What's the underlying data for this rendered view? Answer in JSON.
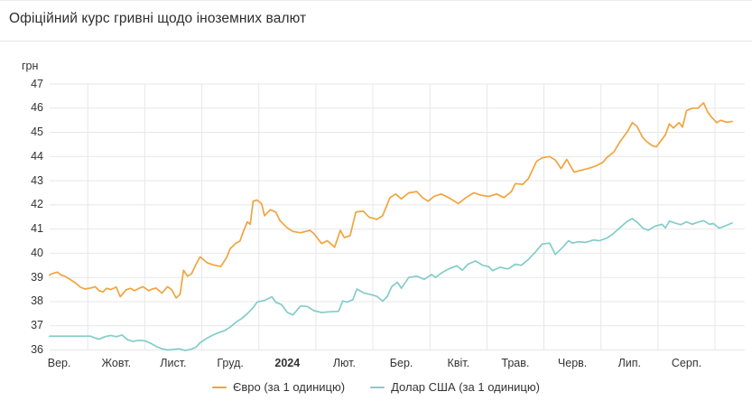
{
  "header": {
    "title": "Офіційний курс гривні щодо іноземних валют"
  },
  "colors": {
    "euro_line": "#f1a43d",
    "usd_line": "#82cdca",
    "grid": "#e7e7e7",
    "text": "#333333"
  },
  "chart_data": {
    "type": "line",
    "title": "Офіційний курс гривні щодо іноземних валют",
    "ylabel": "грн",
    "ylim": [
      36,
      47
    ],
    "y_ticks": [
      47,
      46,
      45,
      44,
      43,
      42,
      41,
      40,
      39,
      38,
      37,
      36
    ],
    "x_tick_labels": [
      "Вер.",
      "Жовт.",
      "Лист.",
      "Груд.",
      "2024",
      "Лют.",
      "Бер.",
      "Квіт.",
      "Трав.",
      "Черв.",
      "Лип.",
      "Серп."
    ],
    "x_unit": "months-since-2023-09-01",
    "xlim": [
      0.32,
      12.5
    ],
    "grid": true,
    "legend_position": "bottom",
    "series": [
      {
        "name": "Євро (за 1 одиницю)",
        "color": "#f1a43d",
        "points": [
          [
            0.33,
            39.1
          ],
          [
            0.4,
            39.18
          ],
          [
            0.47,
            39.22
          ],
          [
            0.53,
            39.1
          ],
          [
            0.6,
            39.05
          ],
          [
            0.67,
            38.95
          ],
          [
            0.78,
            38.78
          ],
          [
            0.87,
            38.6
          ],
          [
            0.95,
            38.52
          ],
          [
            1.07,
            38.57
          ],
          [
            1.13,
            38.62
          ],
          [
            1.2,
            38.45
          ],
          [
            1.27,
            38.4
          ],
          [
            1.33,
            38.55
          ],
          [
            1.4,
            38.5
          ],
          [
            1.5,
            38.6
          ],
          [
            1.57,
            38.2
          ],
          [
            1.67,
            38.48
          ],
          [
            1.75,
            38.55
          ],
          [
            1.82,
            38.45
          ],
          [
            1.9,
            38.55
          ],
          [
            1.97,
            38.62
          ],
          [
            2.07,
            38.45
          ],
          [
            2.13,
            38.52
          ],
          [
            2.2,
            38.56
          ],
          [
            2.3,
            38.35
          ],
          [
            2.4,
            38.62
          ],
          [
            2.47,
            38.5
          ],
          [
            2.55,
            38.15
          ],
          [
            2.62,
            38.3
          ],
          [
            2.68,
            39.3
          ],
          [
            2.75,
            39.05
          ],
          [
            2.82,
            39.15
          ],
          [
            2.9,
            39.55
          ],
          [
            2.97,
            39.85
          ],
          [
            3.1,
            39.6
          ],
          [
            3.2,
            39.52
          ],
          [
            3.33,
            39.45
          ],
          [
            3.43,
            39.8
          ],
          [
            3.5,
            40.2
          ],
          [
            3.6,
            40.42
          ],
          [
            3.67,
            40.5
          ],
          [
            3.73,
            40.9
          ],
          [
            3.8,
            41.3
          ],
          [
            3.85,
            41.2
          ],
          [
            3.9,
            42.15
          ],
          [
            3.97,
            42.2
          ],
          [
            4.05,
            42.05
          ],
          [
            4.1,
            41.55
          ],
          [
            4.2,
            41.8
          ],
          [
            4.3,
            41.7
          ],
          [
            4.37,
            41.35
          ],
          [
            4.5,
            41.05
          ],
          [
            4.6,
            40.9
          ],
          [
            4.73,
            40.85
          ],
          [
            4.9,
            40.95
          ],
          [
            4.97,
            40.8
          ],
          [
            5.1,
            40.4
          ],
          [
            5.2,
            40.52
          ],
          [
            5.33,
            40.25
          ],
          [
            5.43,
            40.95
          ],
          [
            5.5,
            40.65
          ],
          [
            5.6,
            40.72
          ],
          [
            5.7,
            41.7
          ],
          [
            5.83,
            41.75
          ],
          [
            5.93,
            41.5
          ],
          [
            6.07,
            41.4
          ],
          [
            6.17,
            41.55
          ],
          [
            6.3,
            42.3
          ],
          [
            6.4,
            42.45
          ],
          [
            6.5,
            42.25
          ],
          [
            6.63,
            42.5
          ],
          [
            6.77,
            42.55
          ],
          [
            6.87,
            42.3
          ],
          [
            6.97,
            42.15
          ],
          [
            7.07,
            42.35
          ],
          [
            7.2,
            42.45
          ],
          [
            7.33,
            42.3
          ],
          [
            7.5,
            42.05
          ],
          [
            7.63,
            42.3
          ],
          [
            7.77,
            42.5
          ],
          [
            7.9,
            42.4
          ],
          [
            8.03,
            42.35
          ],
          [
            8.17,
            42.45
          ],
          [
            8.3,
            42.3
          ],
          [
            8.43,
            42.55
          ],
          [
            8.5,
            42.88
          ],
          [
            8.63,
            42.85
          ],
          [
            8.73,
            43.1
          ],
          [
            8.87,
            43.8
          ],
          [
            8.97,
            43.95
          ],
          [
            9.1,
            44.0
          ],
          [
            9.2,
            43.85
          ],
          [
            9.3,
            43.5
          ],
          [
            9.4,
            43.88
          ],
          [
            9.53,
            43.35
          ],
          [
            9.63,
            43.42
          ],
          [
            9.77,
            43.5
          ],
          [
            9.9,
            43.6
          ],
          [
            10.03,
            43.75
          ],
          [
            10.1,
            43.95
          ],
          [
            10.23,
            44.2
          ],
          [
            10.33,
            44.6
          ],
          [
            10.47,
            45.05
          ],
          [
            10.55,
            45.4
          ],
          [
            10.63,
            45.25
          ],
          [
            10.73,
            44.8
          ],
          [
            10.8,
            44.62
          ],
          [
            10.9,
            44.45
          ],
          [
            10.97,
            44.4
          ],
          [
            11.13,
            44.9
          ],
          [
            11.2,
            45.35
          ],
          [
            11.27,
            45.18
          ],
          [
            11.37,
            45.4
          ],
          [
            11.43,
            45.22
          ],
          [
            11.5,
            45.9
          ],
          [
            11.6,
            46.0
          ],
          [
            11.7,
            46.0
          ],
          [
            11.8,
            46.22
          ],
          [
            11.87,
            45.85
          ],
          [
            11.93,
            45.65
          ],
          [
            12.03,
            45.4
          ],
          [
            12.1,
            45.5
          ],
          [
            12.2,
            45.42
          ],
          [
            12.3,
            45.45
          ]
        ]
      },
      {
        "name": "Долар США (за 1 одиницю)",
        "color": "#82cdca",
        "points": [
          [
            0.33,
            36.57
          ],
          [
            0.6,
            36.57
          ],
          [
            0.9,
            36.57
          ],
          [
            1.05,
            36.57
          ],
          [
            1.12,
            36.5
          ],
          [
            1.2,
            36.45
          ],
          [
            1.3,
            36.55
          ],
          [
            1.4,
            36.6
          ],
          [
            1.5,
            36.55
          ],
          [
            1.6,
            36.62
          ],
          [
            1.7,
            36.42
          ],
          [
            1.8,
            36.36
          ],
          [
            1.9,
            36.4
          ],
          [
            2.0,
            36.38
          ],
          [
            2.1,
            36.28
          ],
          [
            2.2,
            36.15
          ],
          [
            2.3,
            36.05
          ],
          [
            2.4,
            36.0
          ],
          [
            2.5,
            36.02
          ],
          [
            2.6,
            36.05
          ],
          [
            2.7,
            35.98
          ],
          [
            2.8,
            36.02
          ],
          [
            2.9,
            36.12
          ],
          [
            2.97,
            36.3
          ],
          [
            3.1,
            36.5
          ],
          [
            3.2,
            36.62
          ],
          [
            3.3,
            36.72
          ],
          [
            3.4,
            36.8
          ],
          [
            3.5,
            36.95
          ],
          [
            3.6,
            37.15
          ],
          [
            3.7,
            37.3
          ],
          [
            3.8,
            37.5
          ],
          [
            3.9,
            37.75
          ],
          [
            3.97,
            37.98
          ],
          [
            4.1,
            38.05
          ],
          [
            4.23,
            38.2
          ],
          [
            4.3,
            37.97
          ],
          [
            4.4,
            37.88
          ],
          [
            4.5,
            37.55
          ],
          [
            4.6,
            37.45
          ],
          [
            4.73,
            37.82
          ],
          [
            4.85,
            37.8
          ],
          [
            4.97,
            37.62
          ],
          [
            5.1,
            37.55
          ],
          [
            5.25,
            37.58
          ],
          [
            5.4,
            37.6
          ],
          [
            5.47,
            38.03
          ],
          [
            5.55,
            37.98
          ],
          [
            5.65,
            38.08
          ],
          [
            5.72,
            38.52
          ],
          [
            5.85,
            38.35
          ],
          [
            5.95,
            38.3
          ],
          [
            6.07,
            38.22
          ],
          [
            6.17,
            38.02
          ],
          [
            6.25,
            38.2
          ],
          [
            6.33,
            38.62
          ],
          [
            6.43,
            38.8
          ],
          [
            6.5,
            38.55
          ],
          [
            6.63,
            39.0
          ],
          [
            6.77,
            39.05
          ],
          [
            6.9,
            38.92
          ],
          [
            7.03,
            39.12
          ],
          [
            7.1,
            39.0
          ],
          [
            7.2,
            39.18
          ],
          [
            7.33,
            39.35
          ],
          [
            7.47,
            39.48
          ],
          [
            7.57,
            39.3
          ],
          [
            7.67,
            39.55
          ],
          [
            7.8,
            39.68
          ],
          [
            7.93,
            39.5
          ],
          [
            8.03,
            39.45
          ],
          [
            8.1,
            39.28
          ],
          [
            8.23,
            39.42
          ],
          [
            8.37,
            39.35
          ],
          [
            8.5,
            39.55
          ],
          [
            8.6,
            39.5
          ],
          [
            8.73,
            39.75
          ],
          [
            8.87,
            40.1
          ],
          [
            8.97,
            40.38
          ],
          [
            9.1,
            40.42
          ],
          [
            9.2,
            39.95
          ],
          [
            9.33,
            40.25
          ],
          [
            9.43,
            40.52
          ],
          [
            9.5,
            40.42
          ],
          [
            9.6,
            40.48
          ],
          [
            9.73,
            40.45
          ],
          [
            9.87,
            40.55
          ],
          [
            9.97,
            40.52
          ],
          [
            10.1,
            40.62
          ],
          [
            10.2,
            40.78
          ],
          [
            10.33,
            41.05
          ],
          [
            10.45,
            41.3
          ],
          [
            10.55,
            41.44
          ],
          [
            10.65,
            41.25
          ],
          [
            10.73,
            41.05
          ],
          [
            10.83,
            40.95
          ],
          [
            10.95,
            41.12
          ],
          [
            11.07,
            41.2
          ],
          [
            11.13,
            41.05
          ],
          [
            11.2,
            41.33
          ],
          [
            11.3,
            41.25
          ],
          [
            11.4,
            41.18
          ],
          [
            11.5,
            41.3
          ],
          [
            11.6,
            41.2
          ],
          [
            11.7,
            41.28
          ],
          [
            11.8,
            41.35
          ],
          [
            11.9,
            41.2
          ],
          [
            11.97,
            41.23
          ],
          [
            12.07,
            41.04
          ],
          [
            12.17,
            41.12
          ],
          [
            12.3,
            41.25
          ]
        ]
      }
    ]
  }
}
